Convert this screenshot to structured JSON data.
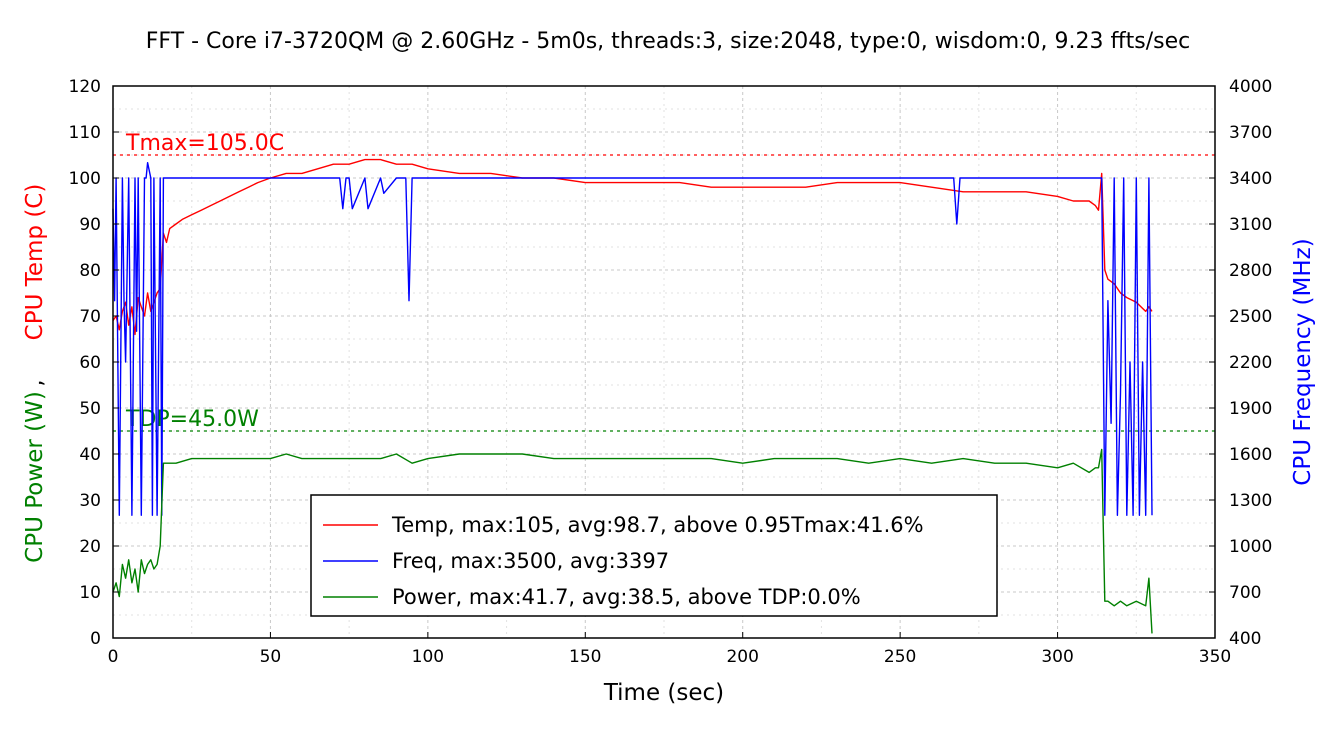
{
  "chart_data": {
    "type": "line",
    "title": "FFT - Core i7-3720QM @ 2.60GHz - 5m0s, threads:3, size:2048, type:0, wisdom:0, 9.23 ffts/sec",
    "xlabel": "Time (sec)",
    "ylabel_left_top": "CPU Temp (C)",
    "ylabel_left_sep": ",",
    "ylabel_left_bottom": "CPU Power (W)",
    "ylabel_right": "CPU Frequency (MHz)",
    "xlim": [
      0,
      350
    ],
    "ylim_left": [
      0,
      120
    ],
    "ylim_right": [
      400,
      4000
    ],
    "x_ticks": [
      0,
      50,
      100,
      150,
      200,
      250,
      300,
      350
    ],
    "y_left_ticks": [
      0,
      10,
      20,
      30,
      40,
      50,
      60,
      70,
      80,
      90,
      100,
      110,
      120
    ],
    "y_right_ticks": [
      400,
      700,
      1000,
      1300,
      1600,
      1900,
      2200,
      2500,
      2800,
      3100,
      3400,
      3700,
      4000
    ],
    "grid": true,
    "legend_position": "bottom-center",
    "reference_lines": [
      {
        "label": "Tmax=105.0C",
        "value": 105,
        "axis": "left",
        "color": "#ff0000"
      },
      {
        "label": "TDP=45.0W",
        "value": 45,
        "axis": "left",
        "color": "#008000"
      }
    ],
    "series": [
      {
        "name": "Temp, max:105, avg:98.7, above 0.95Tmax:41.6%",
        "axis": "left",
        "color": "#ff0000",
        "x": [
          0,
          1,
          2,
          3,
          4,
          5,
          6,
          7,
          8,
          9,
          10,
          11,
          12,
          13,
          14,
          15,
          16,
          17,
          18,
          20,
          22,
          25,
          28,
          31,
          34,
          37,
          40,
          43,
          46,
          50,
          55,
          60,
          65,
          70,
          75,
          80,
          85,
          90,
          95,
          100,
          110,
          120,
          130,
          140,
          150,
          160,
          170,
          180,
          190,
          200,
          210,
          220,
          230,
          240,
          250,
          260,
          270,
          280,
          290,
          300,
          305,
          310,
          312,
          313,
          314,
          315,
          316,
          318,
          320,
          322,
          325,
          328,
          329,
          330
        ],
        "y": [
          69,
          70,
          67,
          71,
          73,
          68,
          72,
          66,
          74,
          72,
          70,
          75,
          71,
          73,
          75,
          76,
          88,
          86,
          89,
          90,
          91,
          92,
          93,
          94,
          95,
          96,
          97,
          98,
          99,
          100,
          101,
          101,
          102,
          103,
          103,
          104,
          104,
          103,
          103,
          102,
          101,
          101,
          100,
          100,
          99,
          99,
          99,
          99,
          98,
          98,
          98,
          98,
          99,
          99,
          99,
          98,
          97,
          97,
          97,
          96,
          95,
          95,
          94,
          93,
          101,
          80,
          78,
          77,
          75,
          74,
          73,
          71,
          72,
          71
        ]
      },
      {
        "name": "Freq, max:3500, avg:3397",
        "axis": "right",
        "color": "#0000ff",
        "x": [
          0,
          0.5,
          1,
          2,
          3,
          3.5,
          4,
          5,
          6,
          7,
          7.5,
          8,
          9,
          10,
          10.5,
          11,
          12,
          12.5,
          13,
          14,
          15,
          15.5,
          16,
          30,
          60,
          72,
          73,
          74,
          75,
          76,
          80,
          81,
          85,
          86,
          90,
          93,
          94,
          95,
          100,
          150,
          200,
          250,
          267,
          268,
          269,
          270,
          300,
          313,
          314,
          315,
          316,
          317,
          318,
          319,
          320,
          321,
          322,
          323,
          324,
          325,
          326,
          327,
          328,
          329,
          330
        ],
        "y": [
          3200,
          2600,
          3400,
          1200,
          3400,
          2600,
          2200,
          3400,
          1200,
          3400,
          2400,
          3400,
          1200,
          3400,
          3400,
          3500,
          3400,
          1200,
          3400,
          1200,
          3400,
          1200,
          3400,
          3400,
          3400,
          3400,
          3200,
          3400,
          3400,
          3200,
          3400,
          3200,
          3400,
          3300,
          3400,
          3400,
          2600,
          3400,
          3400,
          3400,
          3400,
          3400,
          3400,
          3100,
          3400,
          3400,
          3400,
          3400,
          3400,
          1200,
          2600,
          1800,
          3400,
          1200,
          2000,
          3400,
          1200,
          2200,
          1200,
          3400,
          1200,
          2200,
          1200,
          3400,
          1200
        ]
      },
      {
        "name": "Power, max:41.7, avg:38.5, above TDP:0.0%",
        "axis": "left",
        "color": "#008000",
        "x": [
          0,
          1,
          2,
          3,
          4,
          5,
          6,
          7,
          8,
          9,
          10,
          11,
          12,
          13,
          14,
          15,
          16,
          17,
          20,
          25,
          30,
          35,
          40,
          45,
          50,
          55,
          60,
          65,
          70,
          75,
          80,
          85,
          90,
          95,
          100,
          110,
          120,
          130,
          140,
          150,
          160,
          170,
          180,
          190,
          200,
          210,
          220,
          230,
          240,
          250,
          260,
          270,
          280,
          290,
          300,
          305,
          310,
          312,
          313,
          314,
          315,
          316,
          318,
          320,
          322,
          325,
          328,
          329,
          330
        ],
        "y": [
          10,
          12,
          9,
          16,
          13,
          17,
          12,
          15,
          10,
          17,
          14,
          16,
          17,
          15,
          16,
          20,
          38,
          38,
          38,
          39,
          39,
          39,
          39,
          39,
          39,
          40,
          39,
          39,
          39,
          39,
          39,
          39,
          40,
          38,
          39,
          40,
          40,
          40,
          39,
          39,
          39,
          39,
          39,
          39,
          38,
          39,
          39,
          39,
          38,
          39,
          38,
          39,
          38,
          38,
          37,
          38,
          36,
          37,
          37,
          41,
          8,
          8,
          7,
          8,
          7,
          8,
          7,
          13,
          1
        ]
      }
    ]
  }
}
